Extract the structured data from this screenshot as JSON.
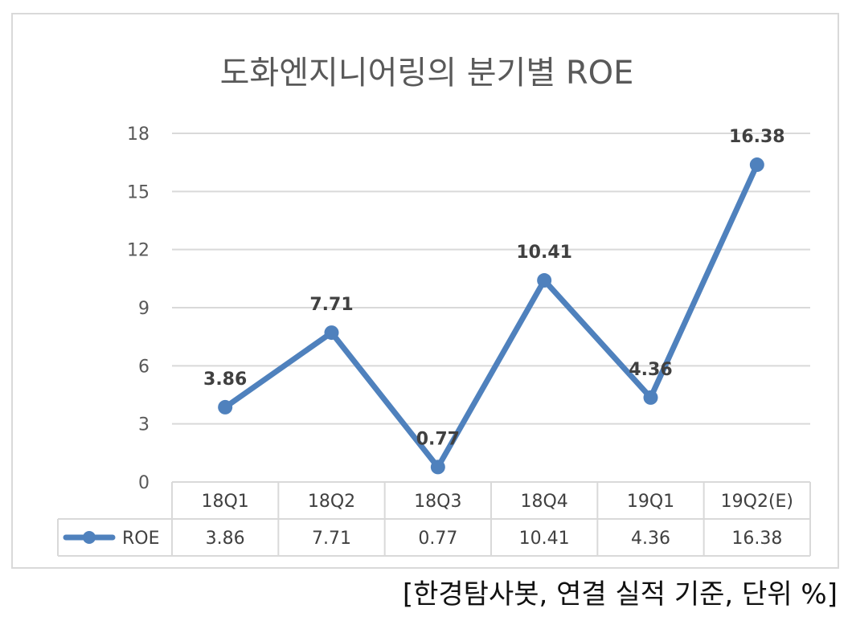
{
  "chart_data": {
    "type": "line",
    "title": "도화엔지니어링의 분기별 ROE",
    "categories": [
      "18Q1",
      "18Q2",
      "18Q3",
      "18Q4",
      "19Q1",
      "19Q2(E)"
    ],
    "series": [
      {
        "name": "ROE",
        "values": [
          3.86,
          7.71,
          0.77,
          10.41,
          4.36,
          16.38
        ],
        "color": "#4f81bd"
      }
    ],
    "data_labels": [
      "3.86",
      "7.71",
      "0.77",
      "10.41",
      "4.36",
      "16.38"
    ],
    "table_values": [
      "3.86",
      "7.71",
      "0.77",
      "10.41",
      "4.36",
      "16.38"
    ],
    "y_ticks": [
      "0",
      "3",
      "6",
      "9",
      "12",
      "15",
      "18"
    ],
    "ylim": [
      0,
      18
    ],
    "grid": true,
    "legend": "data-table"
  },
  "footnote": "[한경탐사봇, 연결 실적 기준, 단위 %]"
}
